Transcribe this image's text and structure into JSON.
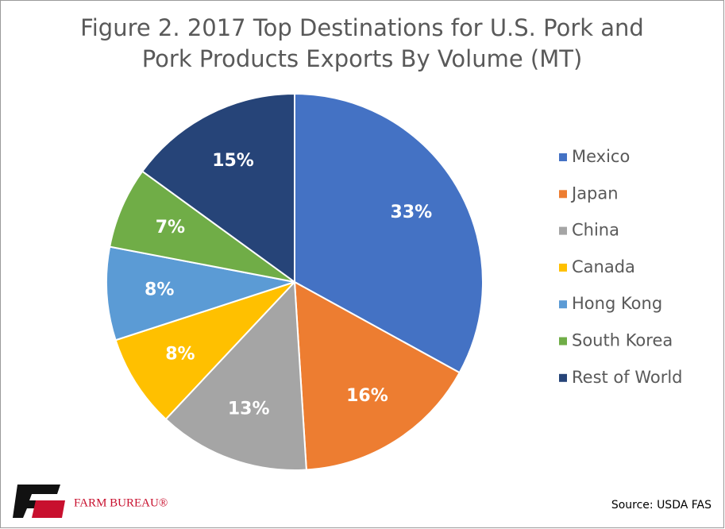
{
  "chart_data": {
    "type": "pie",
    "title": [
      "Figure 2. 2017 Top Destinations for U.S. Pork and",
      "Pork Products Exports By Volume (MT)"
    ],
    "categories": [
      "Mexico",
      "Japan",
      "China",
      "Canada",
      "Hong Kong",
      "South Korea",
      "Rest of World"
    ],
    "values": [
      33,
      16,
      13,
      8,
      8,
      7,
      15
    ],
    "value_labels": [
      "33%",
      "16%",
      "13%",
      "8%",
      "8%",
      "7%",
      "15%"
    ],
    "colors": [
      "#4472c4",
      "#ed7d31",
      "#a5a5a5",
      "#ffc000",
      "#5b9bd5",
      "#70ad47",
      "#264478"
    ],
    "legend": "right",
    "source": "Source: USDA FAS",
    "logo": "FARM BUREAU®"
  }
}
